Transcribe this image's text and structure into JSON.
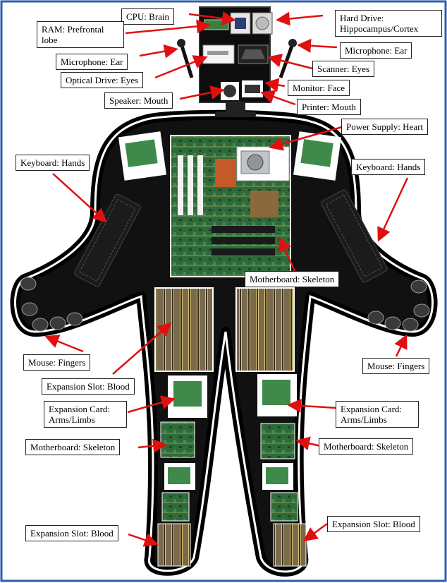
{
  "labels": {
    "cpu": "CPU: Brain",
    "ram": "RAM: Prefrontal lobe",
    "hard_drive": "Hard Drive: Hippocampus/Cortex",
    "mic_left": "Microphone: Ear",
    "mic_right": "Microphone: Ear",
    "optical": "Optical Drive: Eyes",
    "scanner": "Scanner: Eyes",
    "monitor": "Monitor: Face",
    "speaker": "Speaker: Mouth",
    "printer": "Printer: Mouth",
    "power": "Power Supply: Heart",
    "keyboard_left": "Keyboard: Hands",
    "keyboard_right": "Keyboard: Hands",
    "motherboard_torso": "Motherboard: Skeleton",
    "mouse_left": "Mouse: Fingers",
    "mouse_right": "Mouse: Fingers",
    "exp_slot_mid": "Expansion Slot: Blood",
    "exp_card_left": "Expansion Card: Arms/Limbs",
    "exp_card_right": "Expansion Card: Arms/Limbs",
    "mb_left_leg": "Motherboard: Skeleton",
    "mb_right_leg": "Motherboard: Skeleton",
    "exp_slot_left_foot": "Expansion Slot: Blood",
    "exp_slot_right_foot": "Expansion Slot: Blood"
  },
  "colors": {
    "frame": "#2b5fae",
    "body_outline": "#000000",
    "arrow": "#e01010",
    "board_green": "#2f6b3a",
    "slot_brown": "#6b5a3a"
  },
  "icons": [
    "cpu-icon",
    "ram-icon",
    "hard-drive-icon",
    "microphone-icon",
    "optical-drive-icon",
    "scanner-icon",
    "speaker-icon",
    "printer-icon",
    "monitor-icon",
    "power-supply-icon",
    "keyboard-icon",
    "mouse-icon",
    "motherboard-icon",
    "expansion-card-icon",
    "expansion-slot-icon"
  ]
}
